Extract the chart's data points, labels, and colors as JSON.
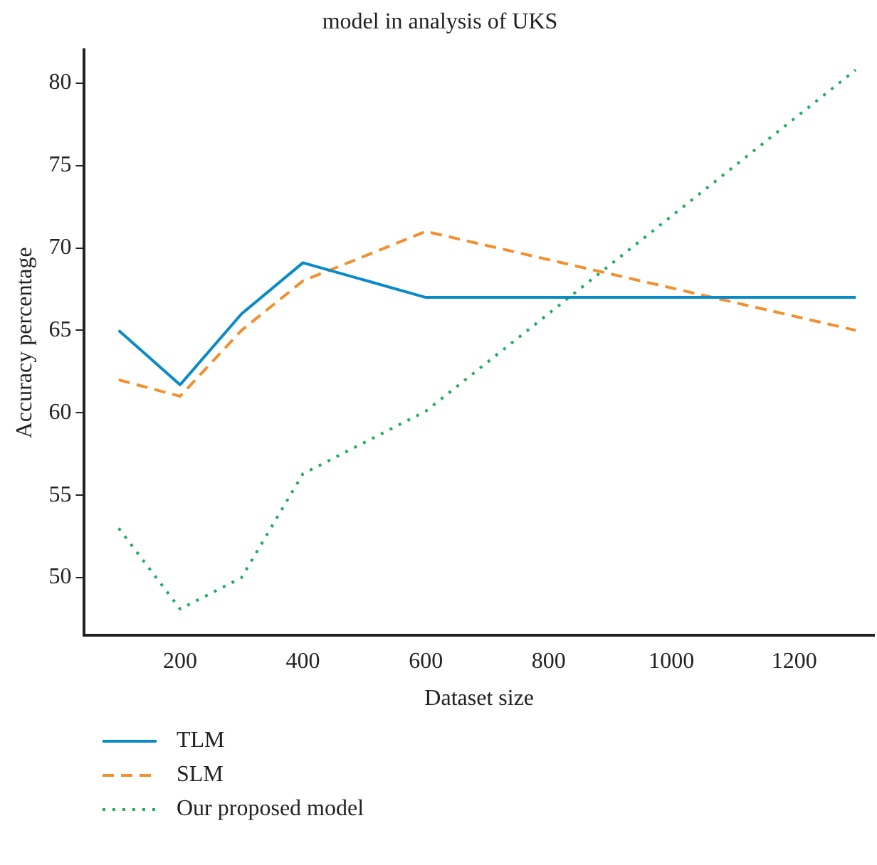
{
  "chart_data": {
    "type": "line",
    "title": "model in analysis of UKS",
    "xlabel": "Dataset size",
    "ylabel": "Accuracy percentage",
    "x": [
      100,
      200,
      300,
      400,
      600,
      1300
    ],
    "series": [
      {
        "name": "TLM",
        "color": "#0a8ac8",
        "line_style": "solid",
        "values": [
          65,
          61.7,
          66,
          69.1,
          67,
          67
        ]
      },
      {
        "name": "SLM",
        "color": "#f0902e",
        "line_style": "dashed",
        "values": [
          62,
          61,
          65,
          68,
          71,
          65
        ]
      },
      {
        "name": "Our proposed model",
        "color": "#1fae5a",
        "line_style": "dotted",
        "values": [
          53,
          48.1,
          50,
          56.3,
          60.1,
          80.8
        ]
      }
    ],
    "xlim": [
      44,
      1330
    ],
    "xticks": [
      200,
      400,
      600,
      800,
      1000,
      1200
    ],
    "ylim": [
      46.5,
      82
    ],
    "yticks": [
      50,
      55,
      60,
      65,
      70,
      75,
      80
    ],
    "grid": false,
    "legend": "bottom",
    "marker": "none"
  }
}
